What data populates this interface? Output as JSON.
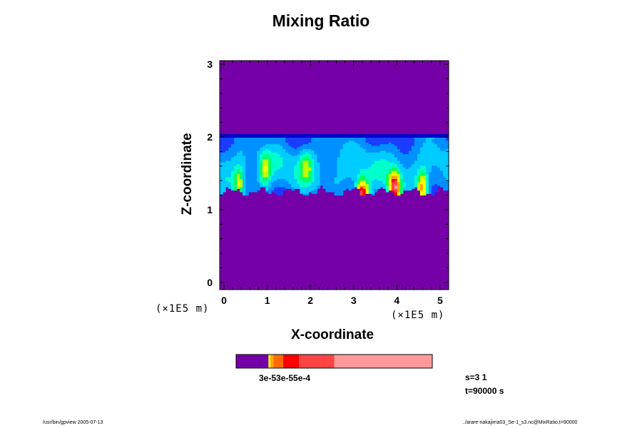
{
  "chart_data": {
    "type": "heatmap",
    "title": "Mixing Ratio",
    "xlabel": "X-coordinate",
    "ylabel": "Z-coordinate",
    "x_unit": "(×1E5 m)",
    "y_unit": "(×1E5 m)",
    "xlim": [
      -0.1,
      5.2
    ],
    "ylim": [
      -0.1,
      3.05
    ],
    "x_ticks": [
      0,
      1,
      2,
      3,
      4,
      5
    ],
    "y_ticks": [
      0,
      1,
      2,
      3
    ],
    "x_tick_labels": [
      "0",
      "1",
      "2",
      "3",
      "4",
      "5"
    ],
    "y_tick_labels": [
      "0",
      "1",
      "2",
      "3"
    ],
    "layer": {
      "z_bottom": 1.2,
      "z_top": 2.02
    },
    "colors": {
      "background": "#7500a8",
      "top_band": "#0000c8",
      "levels": [
        "#1b3cff",
        "#0090ff",
        "#00ccff",
        "#00ffcc",
        "#00ff66",
        "#bfff00",
        "#ffff00",
        "#ffa500",
        "#ff0000",
        "#ff4444",
        "#ff9999"
      ]
    },
    "colorbar": {
      "label": "3e-53e-55e-4",
      "segments": [
        {
          "from": 0,
          "to": 0.165,
          "color": "#7500a8"
        },
        {
          "from": 0.165,
          "to": 0.175,
          "color": "#ffff00"
        },
        {
          "from": 0.175,
          "to": 0.19,
          "color": "#ffa500"
        },
        {
          "from": 0.19,
          "to": 0.24,
          "color": "#ff6a00"
        },
        {
          "from": 0.24,
          "to": 0.32,
          "color": "#ff0000"
        },
        {
          "from": 0.32,
          "to": 0.5,
          "color": "#ff4444"
        },
        {
          "from": 0.5,
          "to": 1.0,
          "color": "#ff9999"
        }
      ]
    }
  },
  "info": {
    "line1": "s=3 1",
    "line2": "t=90000 s"
  },
  "footer": {
    "left": "/usr/bin/gpview 2005-07-13",
    "right": "../arare-nakajima03_Se-1_s3.nc@MixRatio,t=90000"
  }
}
